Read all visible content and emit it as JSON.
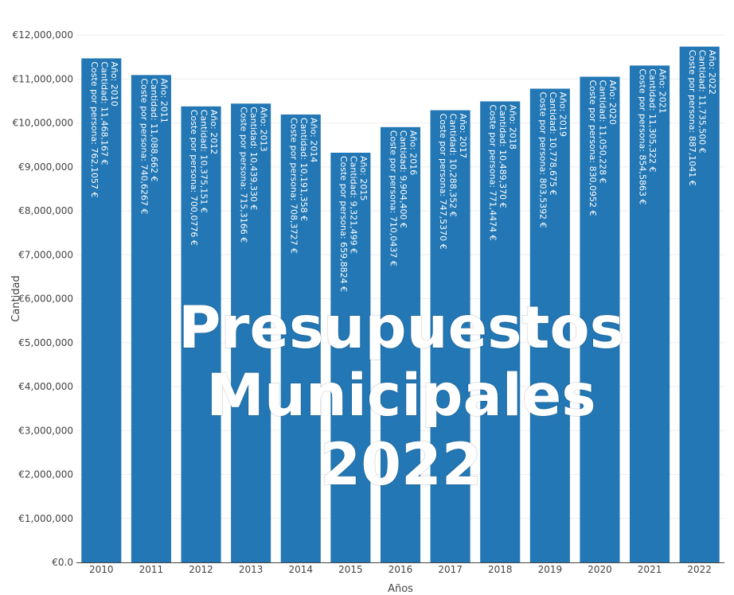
{
  "chart_data": {
    "type": "bar",
    "xlabel": "Años",
    "ylabel": "Cantidad",
    "ylim": [
      0,
      12000000
    ],
    "y_ticks": [
      "€0.0",
      "€1,000,000",
      "€2,000,000",
      "€3,000,000",
      "€4,000,000",
      "€5,000,000",
      "€6,000,000",
      "€7,000,000",
      "€8,000,000",
      "€9,000,000",
      "€10,000,000",
      "€11,000,000",
      "€12,000,000"
    ],
    "grid": true,
    "bar_color": "#2277b4",
    "categories": [
      "2010",
      "2011",
      "2012",
      "2013",
      "2014",
      "2015",
      "2016",
      "2017",
      "2018",
      "2019",
      "2020",
      "2021",
      "2022"
    ],
    "values": [
      11468167,
      11088662,
      10375151,
      10439330,
      10191358,
      9321499,
      9904400,
      10288352,
      10489370,
      10778675,
      11050228,
      11305322,
      11735500
    ],
    "bar_labels": [
      [
        "Año: 2010",
        "Cantidad: 11,468,167 €",
        "Coste por persona: 762,1057 €"
      ],
      [
        "Año: 2011",
        "Cantidad: 11,088,662 €",
        "Coste por persona: 740,6267 €"
      ],
      [
        "Año: 2012",
        "Cantidad: 10,375,151 €",
        "Coste por persona: 700,0776 €"
      ],
      [
        "Año: 2013",
        "Cantidad: 10,439,330 €",
        "Coste por persona: 715,3166 €"
      ],
      [
        "Año: 2014",
        "Cantidad: 10,191,358 €",
        "Coste por persona: 708,3727 €"
      ],
      [
        "Año: 2015",
        "Cantidad: 9,321,499 €",
        "Coste por persona: 659,8824 €"
      ],
      [
        "Año: 2016",
        "Cantidad: 9,904,400 €",
        "Coste por persona: 710,0437 €"
      ],
      [
        "Año: 2017",
        "Cantidad: 10,288,352 €",
        "Coste por persona: 747,5370 €"
      ],
      [
        "Año: 2018",
        "Cantidad: 10,489,370 €",
        "Coste por persona: 771,4474 €"
      ],
      [
        "Año: 2019",
        "Cantidad: 10,778,675 €",
        "Coste por persona: 803,5392 €"
      ],
      [
        "Año: 2020",
        "Cantidad: 11,050,228 €",
        "Coste por persona: 830,0952 €"
      ],
      [
        "Año: 2021",
        "Cantidad: 11,305,322 €",
        "Coste por persona: 854,5863 €"
      ],
      [
        "Año: 2022",
        "Cantidad: 11,735,500 €",
        "Coste por persona: 887,1041 €"
      ]
    ]
  },
  "overlay": {
    "lines": [
      "Presupuestos",
      "Municipales",
      "2022"
    ]
  }
}
